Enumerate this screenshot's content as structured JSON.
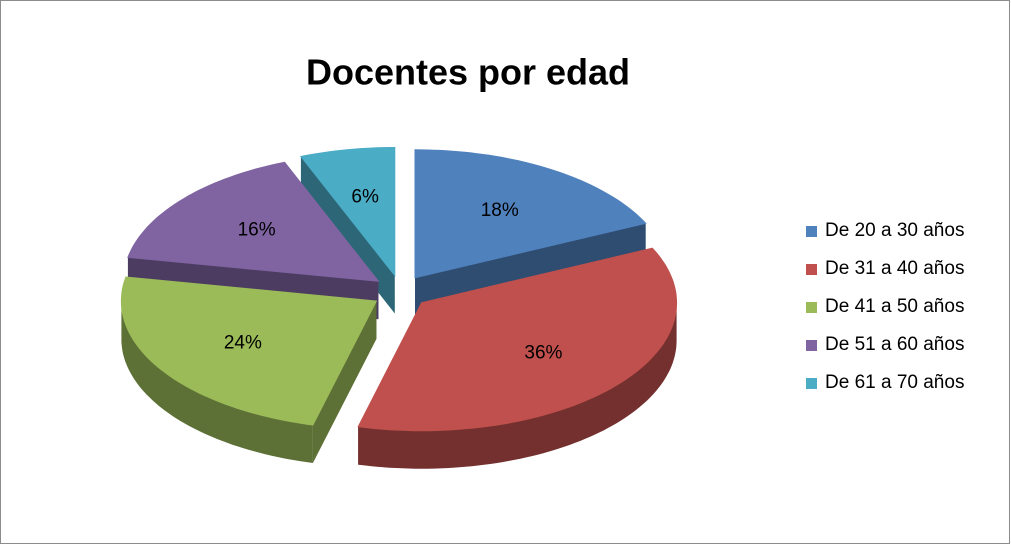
{
  "chart_data": {
    "type": "pie",
    "title": "Docentes por edad",
    "categories": [
      "De 20 a 30 años",
      "De 31 a 40 años",
      "De 41 a 50 años",
      "De 51 a 60 años",
      "De 61 a 70 años"
    ],
    "values": [
      18,
      36,
      24,
      16,
      6
    ],
    "value_labels": [
      "18%",
      "36%",
      "24%",
      "16%",
      "6%"
    ],
    "colors": [
      "#4f81bd",
      "#c0504d",
      "#9bbb59",
      "#8064a2",
      "#4bacc6"
    ],
    "legend": "right"
  }
}
